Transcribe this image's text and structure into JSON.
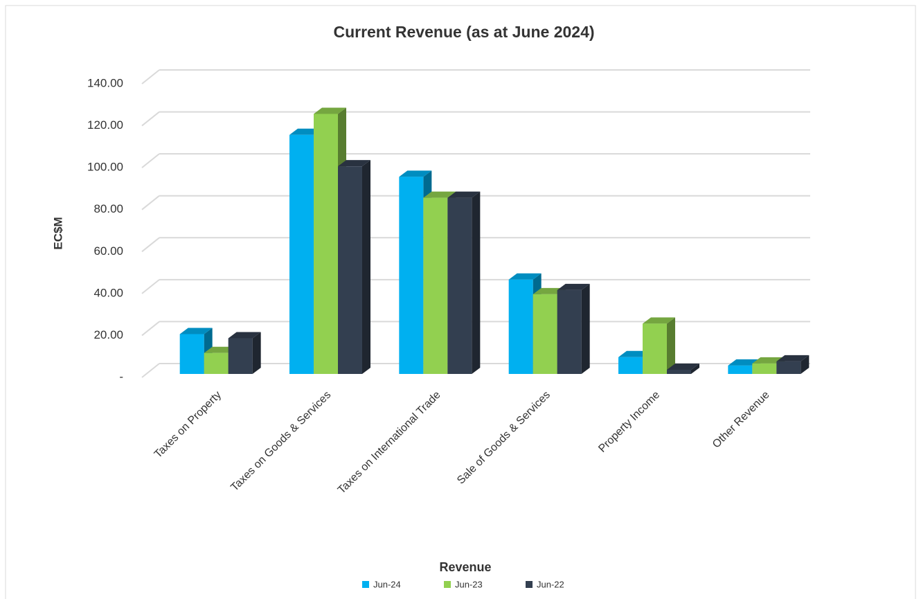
{
  "chart_data": {
    "type": "bar3d",
    "title": "Current Revenue (as at June 2024)",
    "y_label": "EC$M",
    "legend_title": "Revenue",
    "categories": [
      "Taxes on Property",
      "Taxes on Goods & Services",
      "Taxes on International Trade",
      "Sale of Goods & Services",
      "Property Income",
      "Other Revenue"
    ],
    "series": [
      {
        "name": "Jun-24",
        "color": "#00b0f0",
        "values": [
          19,
          114,
          94,
          45,
          8,
          4
        ]
      },
      {
        "name": "Jun-23",
        "color": "#92d050",
        "values": [
          10,
          124,
          84,
          38,
          24,
          5
        ]
      },
      {
        "name": "Jun-22",
        "color": "#333f50",
        "values": [
          17,
          99,
          84,
          40,
          2,
          6
        ]
      }
    ],
    "ylim": [
      0,
      140
    ],
    "yticks": [
      {
        "value": 0,
        "label": "-"
      },
      {
        "value": 20,
        "label": "20.00"
      },
      {
        "value": 40,
        "label": "40.00"
      },
      {
        "value": 60,
        "label": "60.00"
      },
      {
        "value": 80,
        "label": "80.00"
      },
      {
        "value": 100,
        "label": "100.00"
      },
      {
        "value": 120,
        "label": "120.00"
      },
      {
        "value": 140,
        "label": "140.00"
      }
    ],
    "grid": true,
    "legend": "bottom"
  }
}
